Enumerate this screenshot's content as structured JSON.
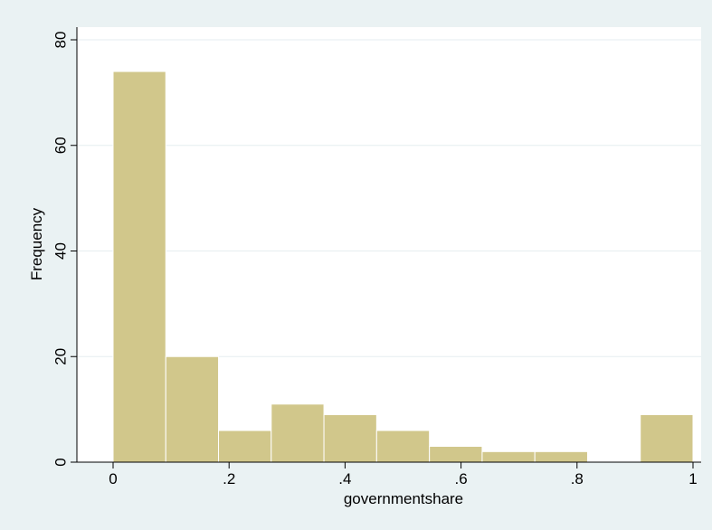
{
  "colors": {
    "outer_background": "#eaf2f3",
    "plot_background": "#ffffff",
    "bar_fill": "#d1c78b",
    "bar_edge": "#ffffff",
    "gridline": "#e6eef0",
    "axis": "#000000"
  },
  "chart_data": {
    "type": "bar",
    "subtype": "histogram",
    "xlabel": "governmentshare",
    "ylabel": "Frequency",
    "xlim": [
      -0.06,
      1.015
    ],
    "ylim": [
      0,
      82
    ],
    "grid": "y-major",
    "x_ticks": [
      0,
      0.2,
      0.4,
      0.6,
      0.8,
      1
    ],
    "x_tick_labels": [
      "0",
      ".2",
      ".4",
      ".6",
      ".8",
      "1"
    ],
    "y_ticks": [
      0,
      20,
      40,
      60,
      80
    ],
    "y_tick_labels": [
      "0",
      "20",
      "40",
      "60",
      "80"
    ],
    "bin_width": 0.0909,
    "bins": [
      {
        "start": 0.0,
        "end": 0.0909,
        "count": 74
      },
      {
        "start": 0.0909,
        "end": 0.1818,
        "count": 20
      },
      {
        "start": 0.1818,
        "end": 0.2727,
        "count": 6
      },
      {
        "start": 0.2727,
        "end": 0.3636,
        "count": 11
      },
      {
        "start": 0.3636,
        "end": 0.4545,
        "count": 9
      },
      {
        "start": 0.4545,
        "end": 0.5455,
        "count": 6
      },
      {
        "start": 0.5455,
        "end": 0.6364,
        "count": 3
      },
      {
        "start": 0.6364,
        "end": 0.7273,
        "count": 2
      },
      {
        "start": 0.7273,
        "end": 0.8182,
        "count": 2
      },
      {
        "start": 0.8182,
        "end": 0.9091,
        "count": 0
      },
      {
        "start": 0.9091,
        "end": 1.0,
        "count": 9
      }
    ]
  }
}
